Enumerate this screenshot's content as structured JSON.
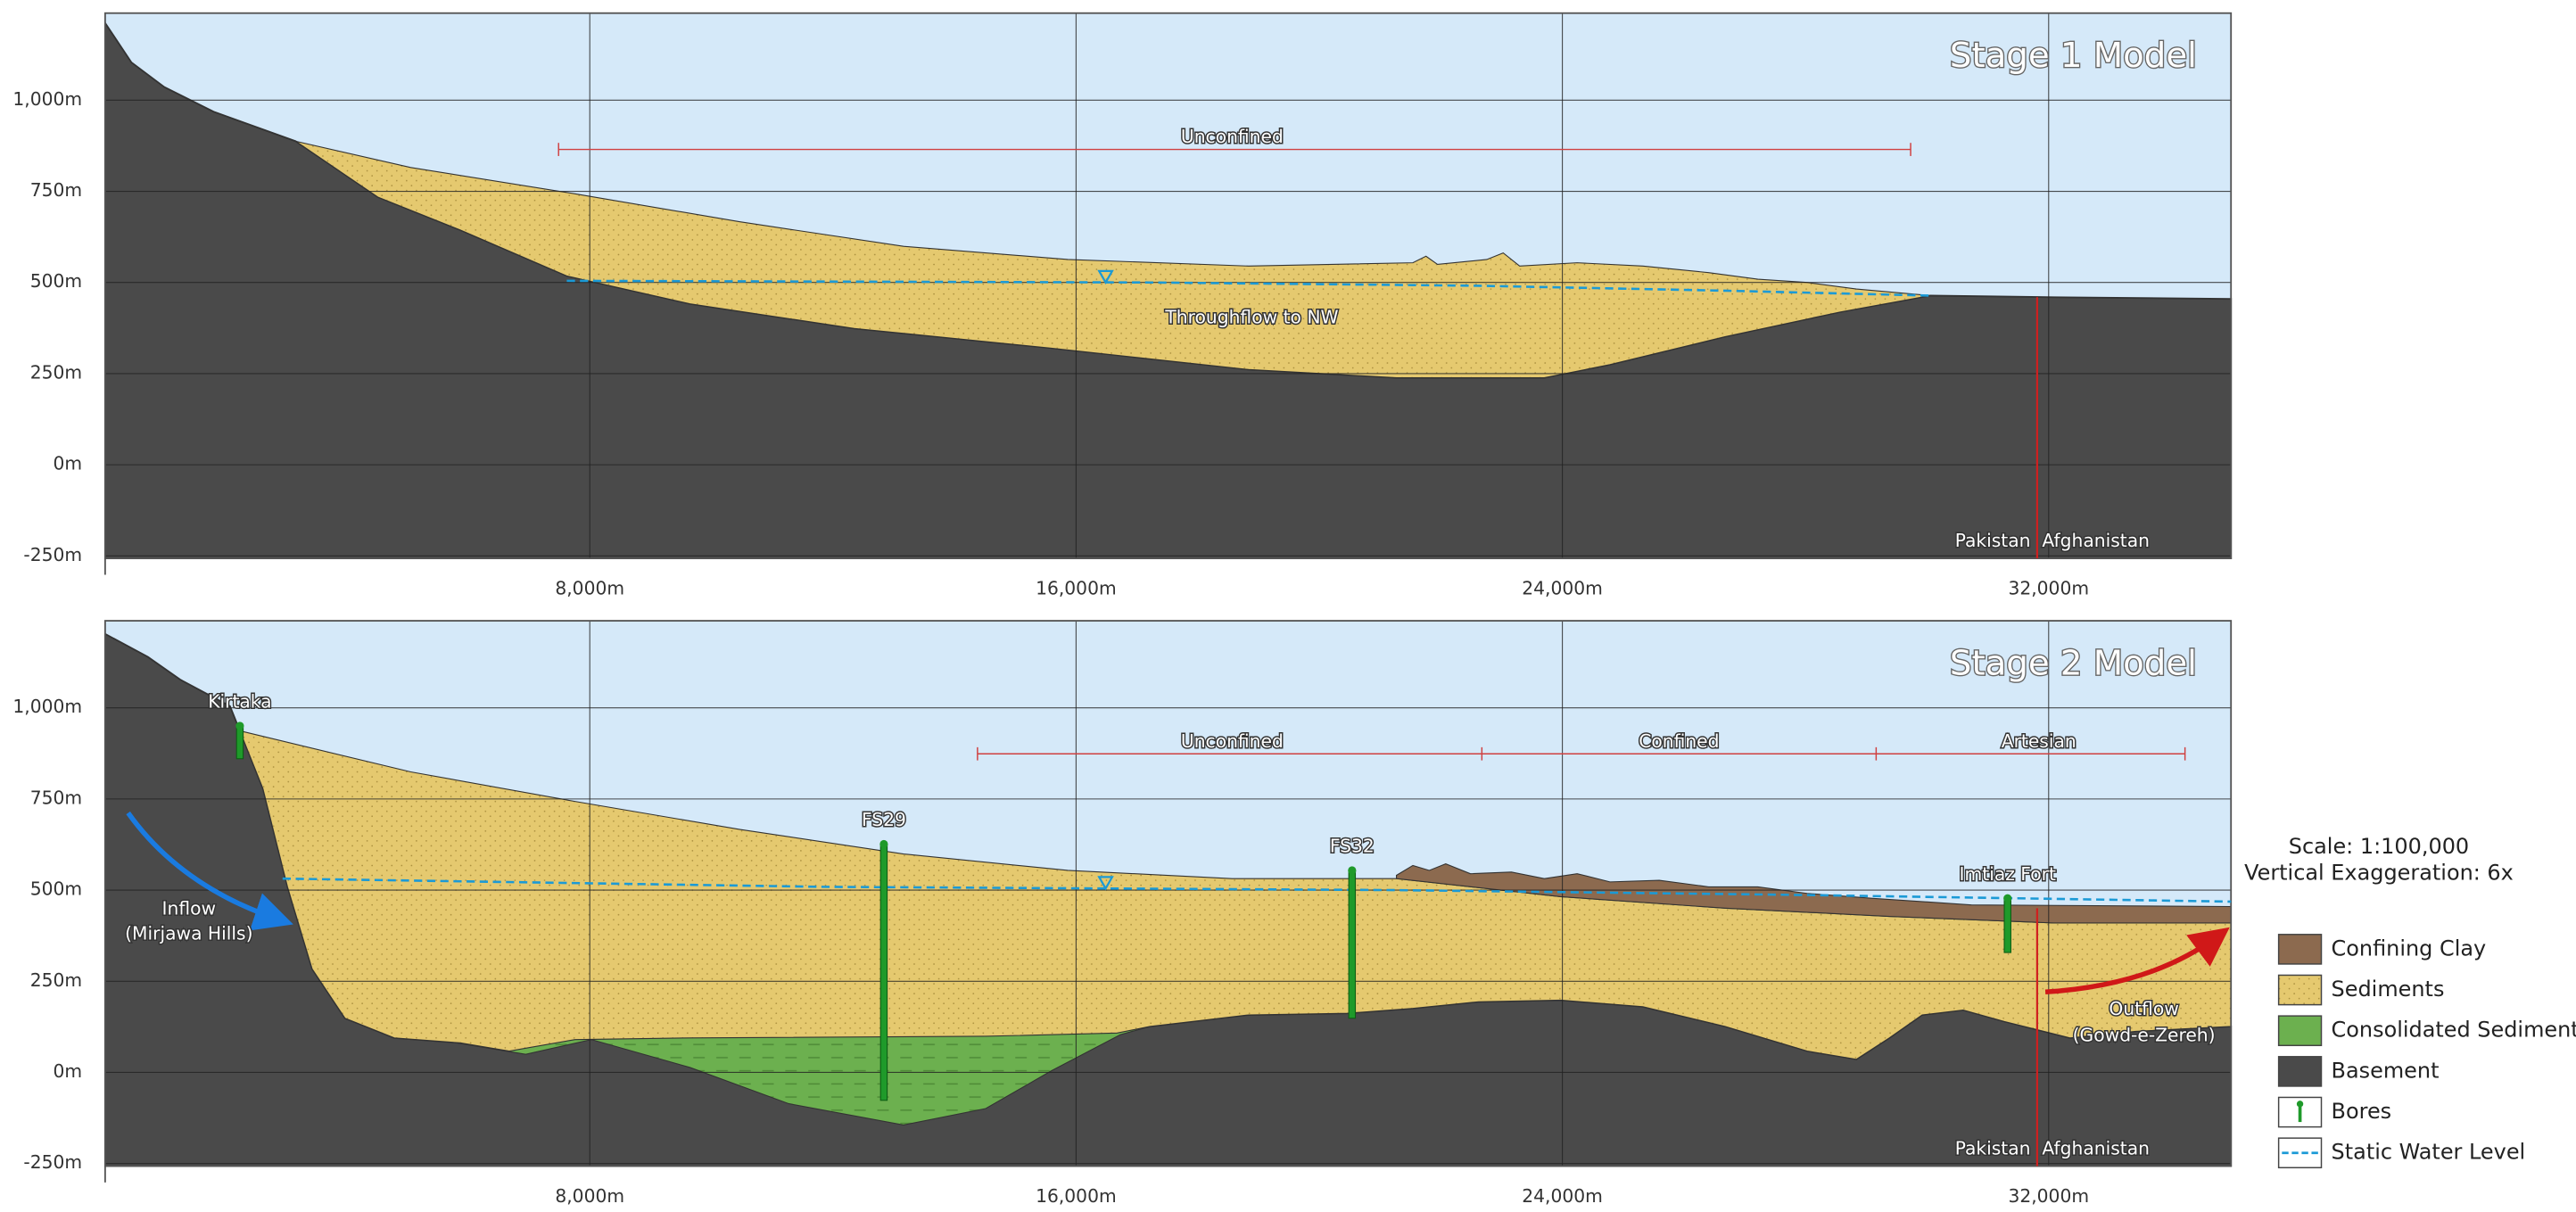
{
  "panels": [
    {
      "title": "Stage 1 Model",
      "y_labels": [
        "1,000m",
        "750m",
        "500m",
        "250m",
        "0m",
        "-250m"
      ],
      "x_labels": [
        "8,000m",
        "16,000m",
        "24,000m",
        "32,000m"
      ],
      "zones": [
        "Unconfined"
      ],
      "flow": "Throughflow to NW",
      "border": [
        "Pakistan",
        "Afghanistan"
      ]
    },
    {
      "title": "Stage 2 Model",
      "y_labels": [
        "1,000m",
        "750m",
        "500m",
        "250m",
        "0m",
        "-250m"
      ],
      "x_labels": [
        "8,000m",
        "16,000m",
        "24,000m",
        "32,000m"
      ],
      "zones": [
        "Unconfined",
        "Confined",
        "Artesian"
      ],
      "bores": [
        "Kirtaka",
        "FS29",
        "FS32",
        "Imtiaz Fort"
      ],
      "inflow": [
        "Inflow",
        "(Mirjawa Hills)"
      ],
      "outflow": [
        "Outflow",
        "(Gowd-e-Zereh)"
      ],
      "border": [
        "Pakistan",
        "Afghanistan"
      ]
    }
  ],
  "scale": "Scale: 1:100,000",
  "exaggeration": "Vertical Exaggeration: 6x",
  "legend": [
    "Confining Clay",
    "Sediments",
    "Consolidated Sediments",
    "Basement",
    "Bores",
    "Static Water Level"
  ]
}
